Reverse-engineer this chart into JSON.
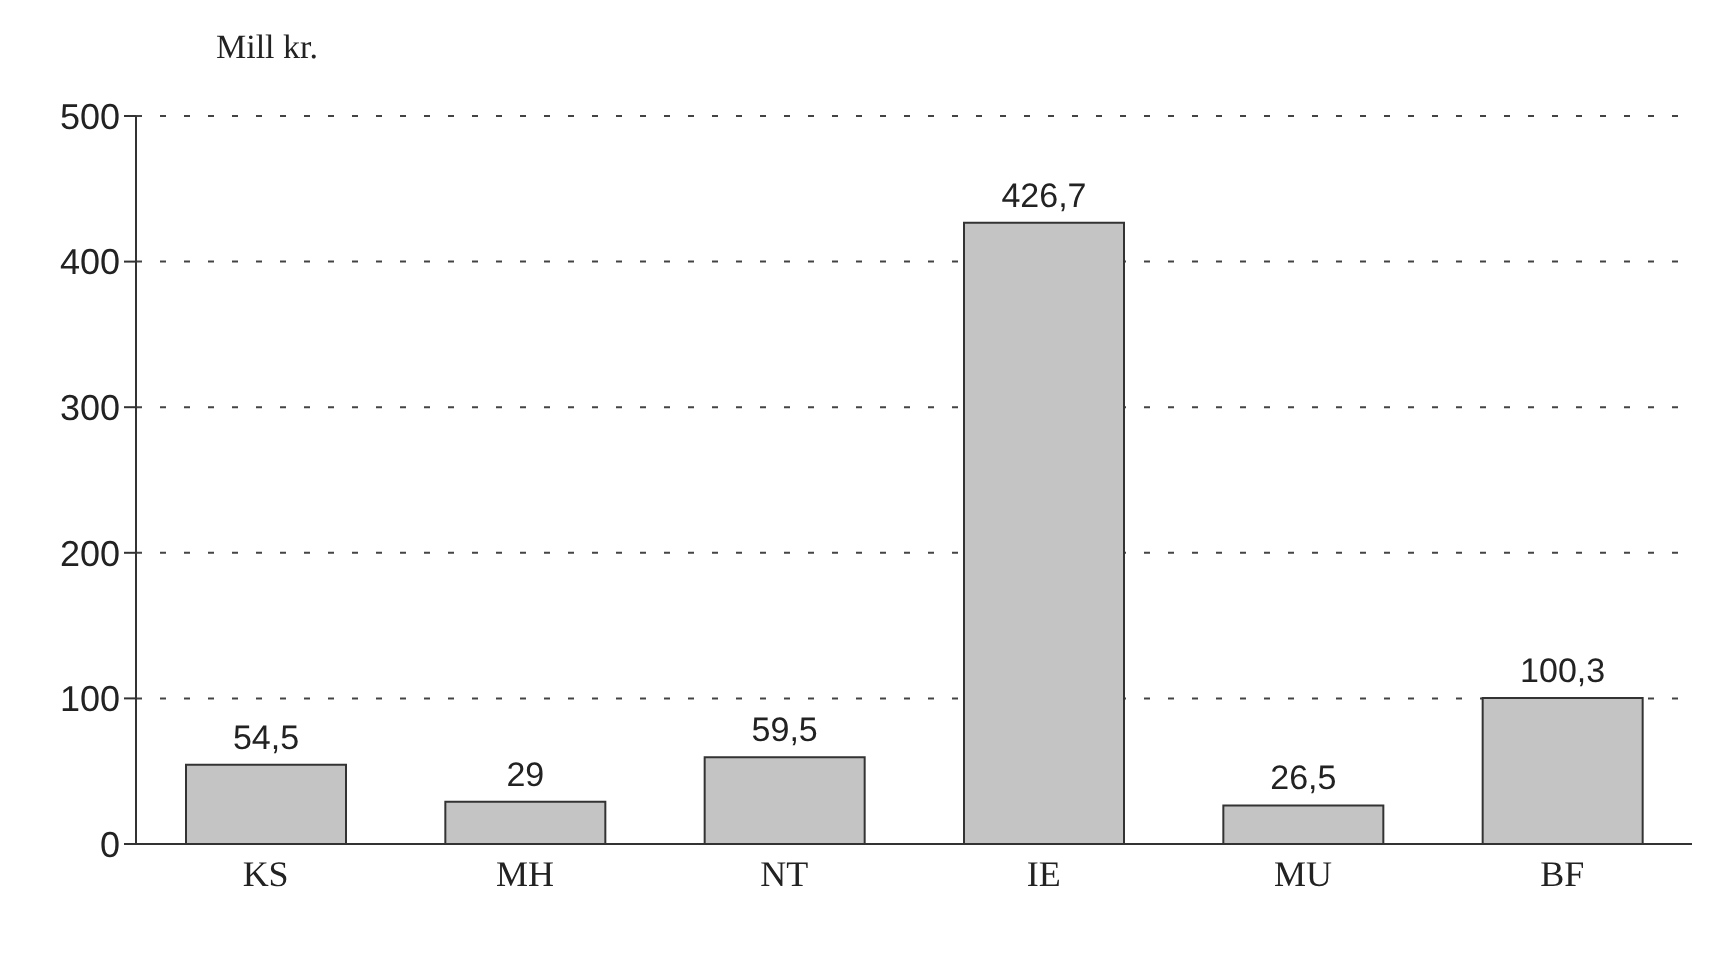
{
  "chart_data": {
    "type": "bar",
    "ylabel": "Mill kr.",
    "categories": [
      "KS",
      "MH",
      "NT",
      "IE",
      "MU",
      "BF"
    ],
    "values": [
      54.5,
      29,
      59.5,
      426.7,
      26.5,
      100.3
    ],
    "value_labels": [
      "54,5",
      "29",
      "59,5",
      "426,7",
      "26,5",
      "100,3"
    ],
    "color": "#c4c4c4",
    "ylim": [
      0,
      500
    ],
    "yticks": [
      0,
      100,
      200,
      300,
      400,
      500
    ],
    "grid": "y"
  }
}
